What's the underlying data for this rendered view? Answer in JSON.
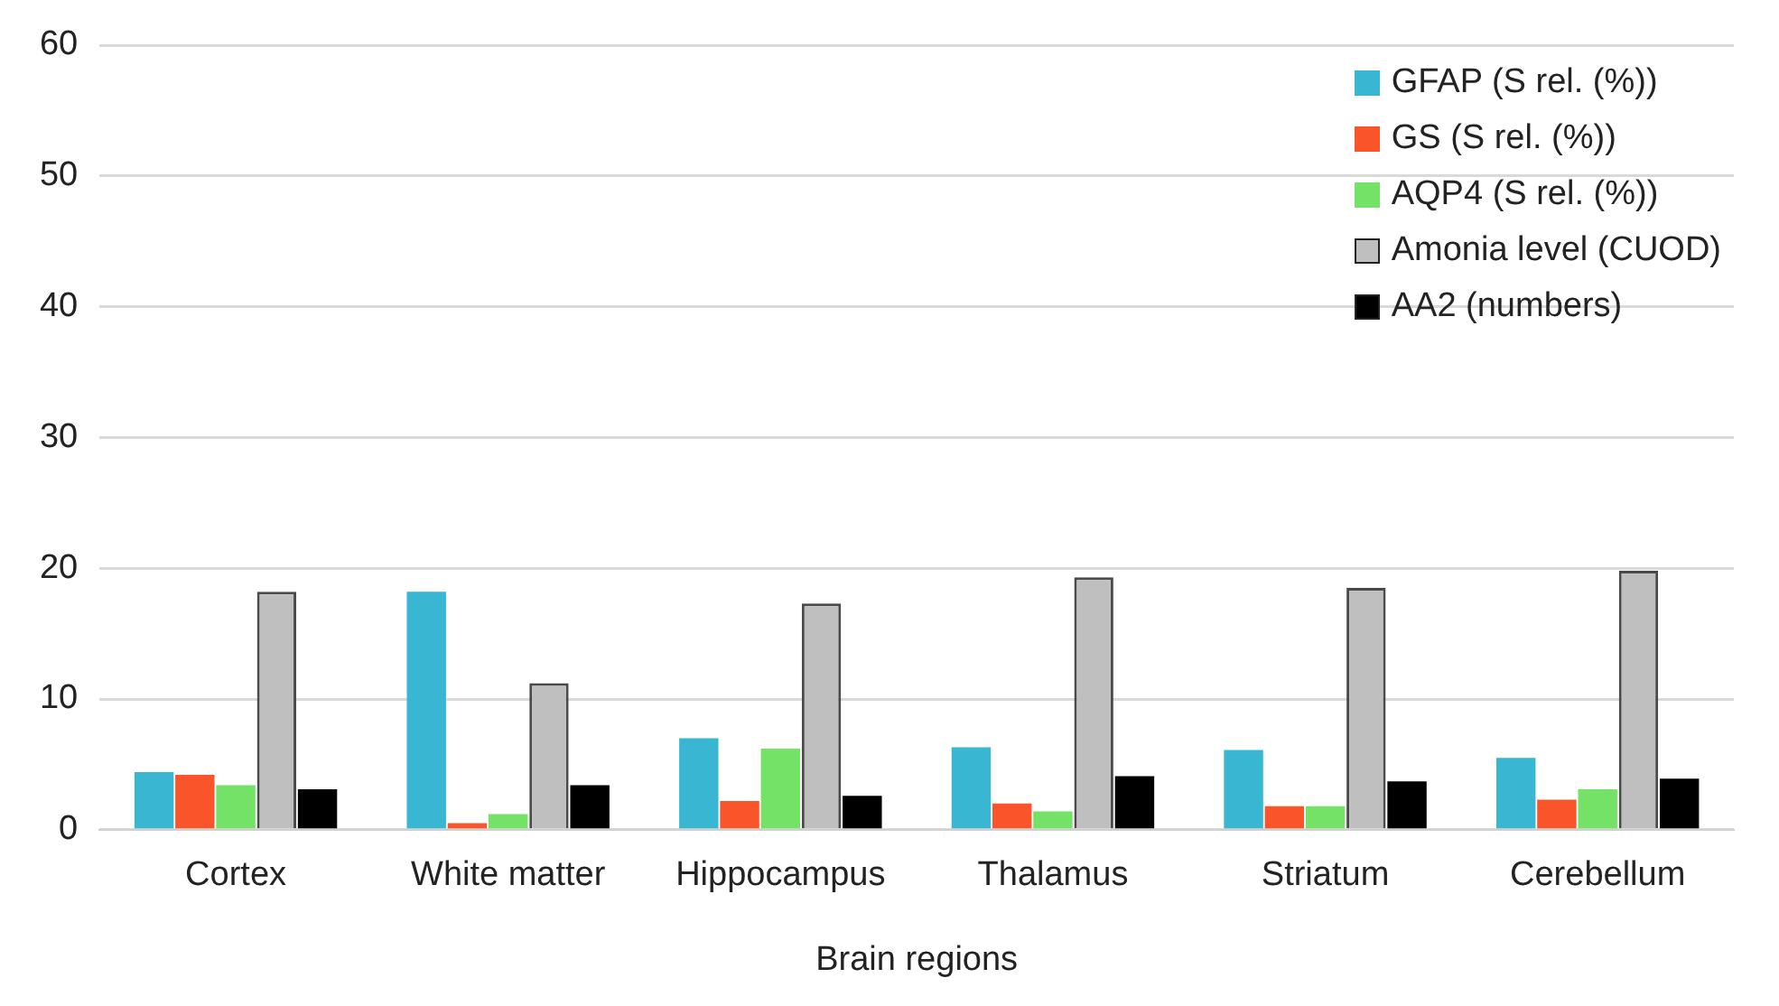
{
  "chart_data": {
    "type": "bar",
    "xlabel": "Brain regions",
    "categories": [
      "Cortex",
      "White matter",
      "Hippocampus",
      "Thalamus",
      "Striatum",
      "Cerebellum"
    ],
    "series": [
      {
        "name": "GFAP (S rel. (%))",
        "color": "#38b6d2",
        "values": [
          4.4,
          18.2,
          7.0,
          6.3,
          6.1,
          5.5
        ]
      },
      {
        "name": "GS (S rel. (%))",
        "color": "#f9542a",
        "values": [
          4.2,
          0.5,
          2.2,
          2.0,
          1.8,
          2.3
        ]
      },
      {
        "name": "AQP4 (S rel. (%))",
        "color": "#74e266",
        "values": [
          3.4,
          1.2,
          6.2,
          1.4,
          1.8,
          3.1
        ]
      },
      {
        "name": "Amonia level (CUOD)",
        "color": "#bfbfbf",
        "values": [
          18.2,
          11.2,
          17.3,
          19.3,
          18.5,
          19.8
        ]
      },
      {
        "name": "AA2 (numbers)",
        "color": "#000000",
        "values": [
          3.1,
          3.4,
          2.6,
          4.1,
          3.7,
          3.9
        ]
      }
    ],
    "ylim": [
      0,
      60
    ],
    "yticks": [
      0,
      10,
      20,
      30,
      40,
      50,
      60
    ],
    "grid": "y",
    "legend": "top right"
  }
}
